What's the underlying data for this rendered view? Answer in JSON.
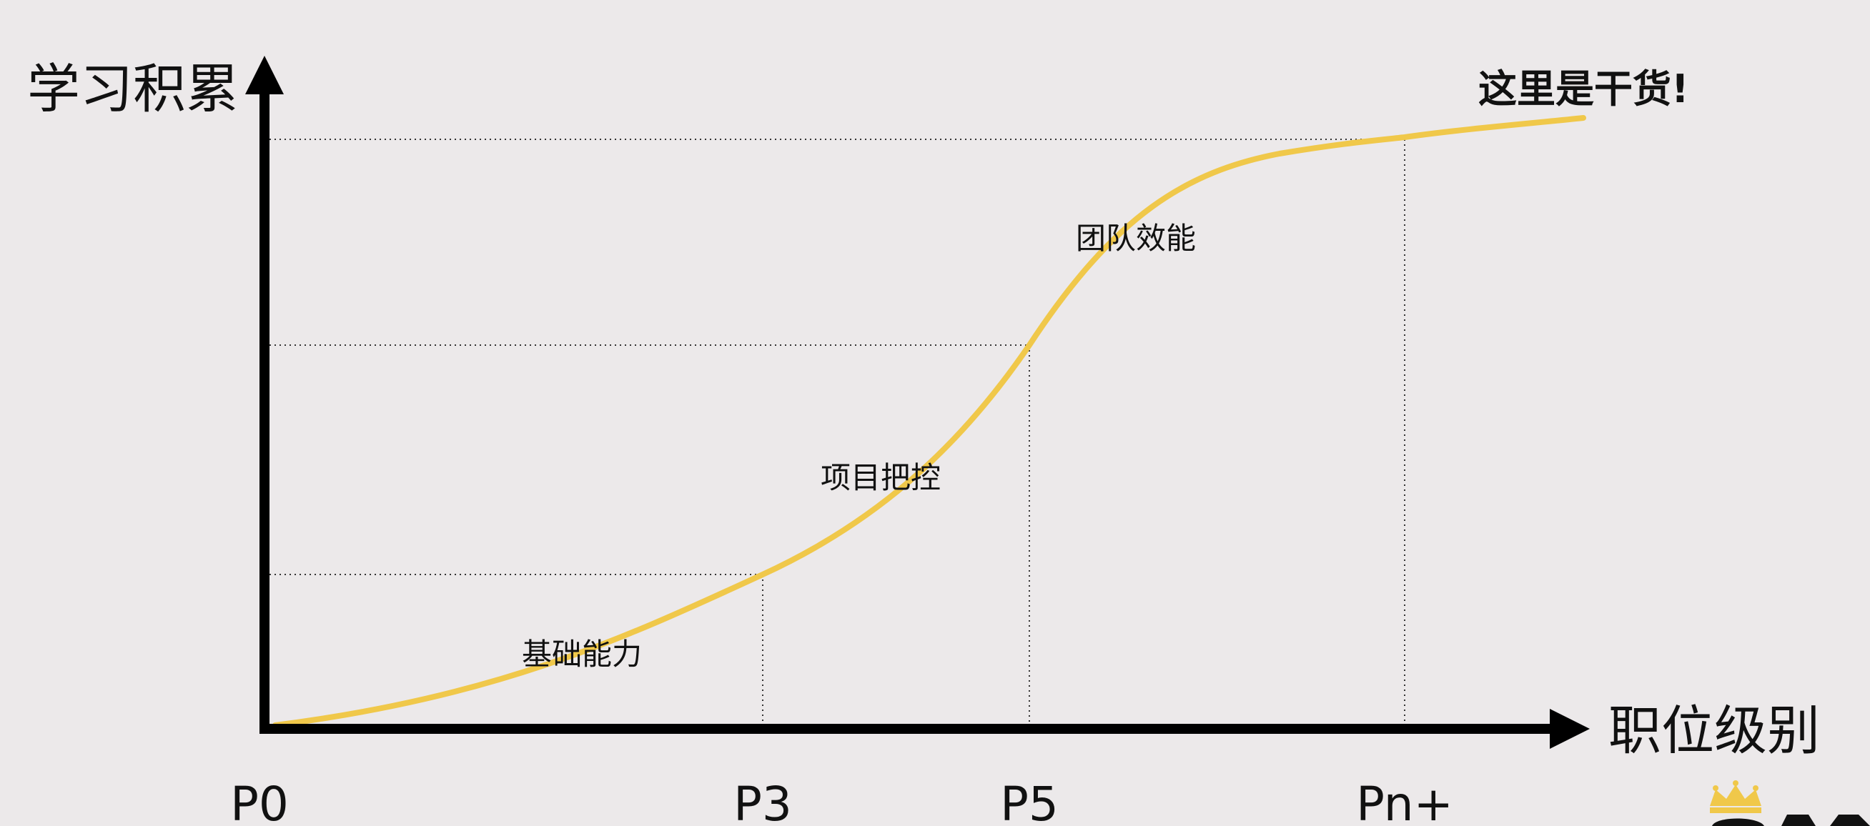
{
  "y_axis_label": "学习积累",
  "x_axis_label": "职位级别",
  "x_ticks": [
    "P0",
    "P3",
    "P5",
    "Pn+"
  ],
  "stages": [
    {
      "label": "基础能力"
    },
    {
      "label": "项目把控"
    },
    {
      "label": "团队效能"
    }
  ],
  "callout": "这里是干货!",
  "colors": {
    "background": "#ece9ea",
    "curve": "#f0c84a",
    "axis": "#000000"
  },
  "icons": [
    "crown-logo"
  ]
}
